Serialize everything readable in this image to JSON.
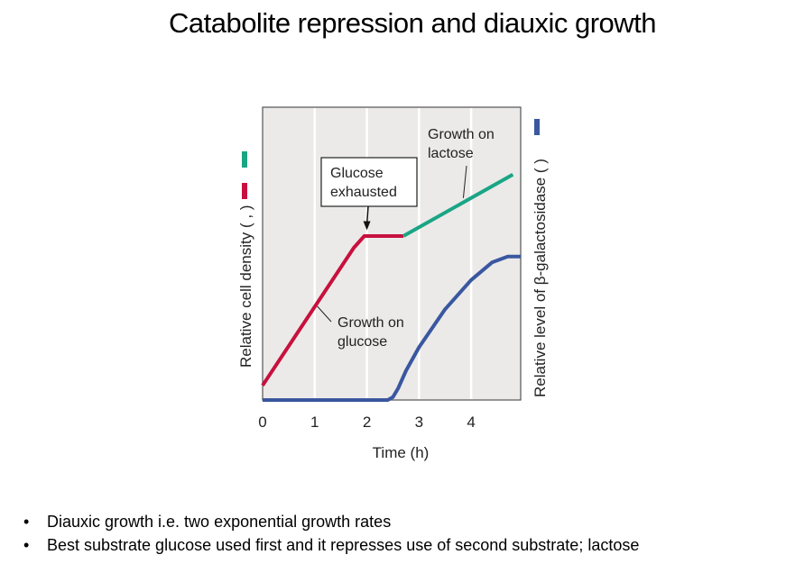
{
  "slide": {
    "title": "Catabolite repression and diauxic growth",
    "bullets": [
      "Diauxic growth i.e. two exponential growth rates",
      "Best substrate glucose used first and it represses use of second substrate; lactose"
    ],
    "bullet_icon": "bullet-dot-icon"
  },
  "chart_data": {
    "type": "line",
    "title": "",
    "xlabel": "Time (h)",
    "ylabel_left": "Relative cell density (",
    "ylabel_left_sep": ",",
    "ylabel_left_end": ")",
    "ylabel_right": "Relative level of β-galactosidase (",
    "ylabel_right_end": ")",
    "xlim": [
      0,
      4.95
    ],
    "ylim": [
      0,
      1
    ],
    "xticks": [
      "0",
      "1",
      "2",
      "3",
      "4"
    ],
    "grid": "vertical",
    "background": "#ebeae8",
    "series": [
      {
        "key": "glucose",
        "color": "#c8103e",
        "points": [
          [
            0,
            0.05
          ],
          [
            1.75,
            0.52
          ],
          [
            1.95,
            0.56
          ],
          [
            2.05,
            0.56
          ],
          [
            2.7,
            0.56
          ]
        ]
      },
      {
        "key": "lactose",
        "color": "#1aa585",
        "points": [
          [
            2.7,
            0.56
          ],
          [
            4.8,
            0.77
          ]
        ]
      },
      {
        "key": "bgal",
        "color": "#3a57a0",
        "points": [
          [
            0,
            0
          ],
          [
            2.4,
            0
          ],
          [
            2.5,
            0.01
          ],
          [
            2.6,
            0.04
          ],
          [
            2.75,
            0.1
          ],
          [
            3,
            0.18
          ],
          [
            3.5,
            0.31
          ],
          [
            4,
            0.41
          ],
          [
            4.4,
            0.47
          ],
          [
            4.7,
            0.49
          ],
          [
            4.95,
            0.49
          ]
        ]
      }
    ],
    "annotations": [
      {
        "text": [
          "Glucose",
          "exhausted"
        ],
        "boxed": true,
        "arrow_to": [
          2,
          0.58
        ]
      },
      {
        "text": [
          "Growth on",
          "lactose"
        ],
        "leader_to": [
          3.85,
          0.69
        ]
      },
      {
        "text": [
          "Growth on",
          "glucose"
        ],
        "leader_to": [
          1.05,
          0.32
        ]
      }
    ]
  }
}
